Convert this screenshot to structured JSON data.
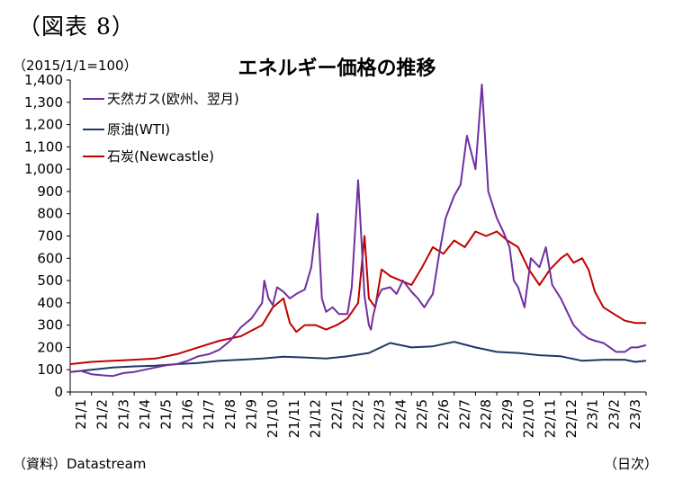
{
  "figure_label": "（図表 8）",
  "unit_label": "（2015/1/1=100）",
  "source_label": "（資料）Datastream",
  "x_unit_label": "（日次）",
  "chart_data": {
    "type": "line",
    "title": "エネルギー価格の推移",
    "ylim": [
      0,
      1400
    ],
    "y_ticks": [
      "0",
      "100",
      "200",
      "300",
      "400",
      "500",
      "600",
      "700",
      "800",
      "900",
      "1,000",
      "1,100",
      "1,200",
      "1,300",
      "1,400"
    ],
    "x_ticks": [
      "21/1",
      "21/2",
      "21/3",
      "21/4",
      "21/5",
      "21/6",
      "21/7",
      "21/8",
      "21/9",
      "21/10",
      "21/11",
      "21/12",
      "22/1",
      "22/2",
      "22/3",
      "22/4",
      "22/5",
      "22/6",
      "22/7",
      "22/8",
      "22/9",
      "22/10",
      "22/11",
      "22/12",
      "23/1",
      "23/2",
      "23/3"
    ],
    "grid": false,
    "legend_position": "top-left",
    "series": [
      {
        "name": "天然ガス(欧州、翌月)",
        "color": "#7030a0",
        "x": [
          0,
          0.5,
          1,
          1.5,
          2,
          2.5,
          3,
          3.5,
          4,
          4.5,
          5,
          5.5,
          6,
          6.5,
          7,
          7.5,
          8,
          8.5,
          9,
          9.1,
          9.3,
          9.5,
          9.7,
          10,
          10.3,
          10.6,
          11,
          11.3,
          11.6,
          11.8,
          12,
          12.3,
          12.6,
          13,
          13.2,
          13.5,
          13.8,
          14,
          14.1,
          14.2,
          14.4,
          14.6,
          15,
          15.3,
          15.6,
          16,
          16.3,
          16.6,
          17,
          17.3,
          17.6,
          18,
          18.3,
          18.6,
          19,
          19.3,
          19.6,
          20,
          20.3,
          20.6,
          20.8,
          21,
          21.3,
          21.6,
          22,
          22.3,
          22.6,
          23,
          23.3,
          23.6,
          24,
          24.3,
          24.6,
          25,
          25.3,
          25.6,
          26,
          26.3,
          26.6,
          27
        ],
        "values": [
          90,
          95,
          80,
          75,
          72,
          85,
          90,
          100,
          110,
          120,
          125,
          140,
          160,
          170,
          190,
          230,
          290,
          330,
          400,
          500,
          420,
          390,
          470,
          450,
          420,
          440,
          460,
          560,
          800,
          420,
          360,
          380,
          350,
          350,
          470,
          950,
          430,
          300,
          280,
          340,
          420,
          460,
          470,
          440,
          500,
          450,
          420,
          380,
          440,
          620,
          780,
          880,
          930,
          1150,
          1000,
          1380,
          900,
          780,
          720,
          650,
          500,
          470,
          380,
          600,
          560,
          650,
          480,
          420,
          360,
          300,
          260,
          240,
          230,
          220,
          200,
          180,
          180,
          200,
          200,
          210
        ]
      },
      {
        "name": "原油(WTI)",
        "color": "#1f3864",
        "x": [
          0,
          1,
          2,
          3,
          4,
          5,
          6,
          7,
          8,
          9,
          10,
          11,
          12,
          13,
          14,
          15,
          16,
          17,
          18,
          19,
          20,
          21,
          22,
          23,
          24,
          25,
          26,
          26.5,
          27
        ],
        "values": [
          90,
          100,
          110,
          115,
          118,
          125,
          130,
          140,
          145,
          150,
          158,
          155,
          150,
          160,
          175,
          220,
          200,
          205,
          225,
          200,
          180,
          175,
          165,
          160,
          140,
          145,
          145,
          135,
          140
        ]
      },
      {
        "name": "石炭(Newcastle)",
        "color": "#c00000",
        "x": [
          0,
          1,
          2,
          3,
          4,
          5,
          6,
          7,
          8,
          9,
          9.5,
          10,
          10.3,
          10.6,
          11,
          11.5,
          12,
          12.5,
          13,
          13.5,
          13.8,
          14,
          14.3,
          14.6,
          15,
          15.5,
          16,
          16.5,
          17,
          17.5,
          18,
          18.5,
          19,
          19.5,
          20,
          20.5,
          21,
          21.5,
          22,
          22.5,
          23,
          23.3,
          23.6,
          24,
          24.3,
          24.6,
          25,
          25.5,
          26,
          26.5,
          27
        ],
        "values": [
          125,
          135,
          140,
          145,
          150,
          170,
          200,
          230,
          250,
          300,
          380,
          420,
          310,
          270,
          300,
          300,
          280,
          300,
          330,
          400,
          700,
          420,
          380,
          550,
          520,
          500,
          480,
          560,
          650,
          620,
          680,
          650,
          720,
          700,
          720,
          680,
          650,
          550,
          480,
          550,
          600,
          620,
          580,
          600,
          550,
          450,
          380,
          350,
          320,
          310,
          310
        ]
      }
    ]
  }
}
